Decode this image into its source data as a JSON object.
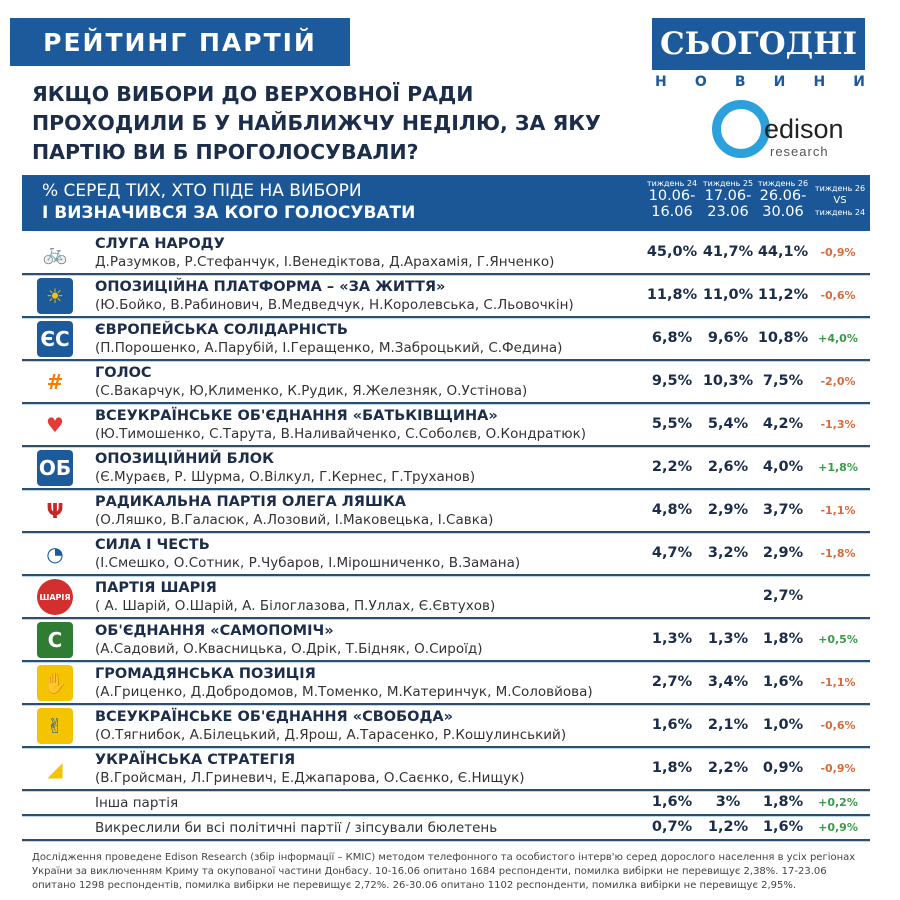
{
  "banner": "РЕЙТИНГ ПАРТІЙ",
  "question": "ЯКЩО ВИБОРИ ДО ВЕРХОВНОЇ РАДИ ПРОХОДИЛИ Б У НАЙБЛИЖЧУ НЕДІЛЮ, ЗА ЯКУ ПАРТІЮ ВИ Б ПРОГОЛОСУВАЛИ?",
  "logos": {
    "segodnya": "СЬОГОДНІ",
    "segodnya_sub": "НОВИНИ",
    "edison": "edison",
    "edison_sub": "research"
  },
  "colors": {
    "brand": "#1b5796",
    "negative": "#d9693a",
    "positive": "#3a9a4a",
    "text": "#1c2d4a"
  },
  "header": {
    "line1": "% СЕРЕД ТИХ, ХТО ПІДЕ НА ВИБОРИ",
    "line2": "І ВИЗНАЧИВСЯ ЗА КОГО ГОЛОСУВАТИ",
    "columns": [
      {
        "week": "тиждень 24",
        "from": "10.06-",
        "to": "16.06"
      },
      {
        "week": "тиждень 25",
        "from": "17.06-",
        "to": "23.06"
      },
      {
        "week": "тиждень 26",
        "from": "26.06-",
        "to": "30.06"
      }
    ],
    "vs_top": "тиждень 26",
    "vs": "VS",
    "vs_bottom": "тиждень 24"
  },
  "chart_data": {
    "type": "table",
    "columns": [
      "10.06-16.06",
      "17.06-23.06",
      "26.06-30.06",
      "тиждень 26 vs тиждень 24"
    ],
    "rows": [
      {
        "party": "СЛУГА НАРОДУ",
        "members": "Д.Разумков, Р.Стефанчук, І.Венедіктова, Д.Арахамія, Г.Янченко)",
        "icon": "cyclist-icon",
        "values": [
          "45,0%",
          "41,7%",
          "44,1%"
        ],
        "diff": "-0,9%"
      },
      {
        "party": "ОПОЗИЦІЙНА ПЛАТФОРМА – «ЗА ЖИТТЯ»",
        "members": "(Ю.Бойко, В.Рабинович, В.Медведчук, Н.Королевська, С.Льовочкін)",
        "icon": "sun-circle-icon",
        "values": [
          "11,8%",
          "11,0%",
          "11,2%"
        ],
        "diff": "-0,6%"
      },
      {
        "party": "ЄВРОПЕЙСЬКА СОЛІДАРНІСТЬ",
        "members": "(П.Порошенко, А.Парубій, І.Геращенко, М.Заброцький, С.Федина)",
        "icon": "es-logo-icon",
        "values": [
          "6,8%",
          "9,6%",
          "10,8%"
        ],
        "diff": "+4,0%"
      },
      {
        "party": "ГОЛОС",
        "members": "(С.Вакарчук, Ю,Клименко, К.Рудик, Я.Железняк, О.Устінова)",
        "icon": "holos-logo-icon",
        "values": [
          "9,5%",
          "10,3%",
          "7,5%"
        ],
        "diff": "-2,0%"
      },
      {
        "party": "ВСЕУКРАЇНСЬКЕ ОБ'ЄДНАННЯ «БАТЬКІВЩИНА»",
        "members": "(Ю.Тимошенко, С.Тарута, В.Наливайченко, С.Соболєв, О.Кондратюк)",
        "icon": "heart-icon",
        "values": [
          "5,5%",
          "5,4%",
          "4,2%"
        ],
        "diff": "-1,3%"
      },
      {
        "party": "ОПОЗИЦІЙНИЙ БЛОК",
        "members": "(Є.Мураєв, Р. Шурма, О.Вілкул, Г.Кернес, Г.Труханов)",
        "icon": "opblock-logo-icon",
        "values": [
          "2,2%",
          "2,6%",
          "4,0%"
        ],
        "diff": "+1,8%"
      },
      {
        "party": "РАДИКАЛЬНА ПАРТІЯ ОЛЕГА ЛЯШКА",
        "members": "(О.Ляшко, В.Галасюк, А.Лозовий, І.Маковецька, І.Савка)",
        "icon": "pitchfork-icon",
        "values": [
          "4,8%",
          "2,9%",
          "3,7%"
        ],
        "diff": "-1,1%"
      },
      {
        "party": "СИЛА І ЧЕСТЬ",
        "members": "(І.Смешко, О.Сотник, Р.Чубаров, І.Мірошниченко, В.Замана)",
        "icon": "sila-logo-icon",
        "values": [
          "4,7%",
          "3,2%",
          "2,9%"
        ],
        "diff": "-1,8%"
      },
      {
        "party": "ПАРТІЯ ШАРІЯ",
        "members": "( А. Шарій, О.Шарій, А. Білоглазова, П.Уллах, Є.Євтухов)",
        "icon": "sharij-logo-icon",
        "values": [
          "",
          "",
          "2,7%"
        ],
        "diff": ""
      },
      {
        "party": "ОБ'ЄДНАННЯ «САМОПОМІЧ»",
        "members": "(А.Садовий, О.Квасницька, О.Дрік, Т.Бідняк, О.Сироїд)",
        "icon": "samopomich-logo-icon",
        "values": [
          "1,3%",
          "1,3%",
          "1,8%"
        ],
        "diff": "+0,5%"
      },
      {
        "party": "ГРОМАДЯНСЬКА ПОЗИЦІЯ",
        "members": "(А.Гриценко, Д.Добродомов, М.Томенко, М.Катеринчук, М.Соловйова)",
        "icon": "hand-icon",
        "values": [
          "2,7%",
          "3,4%",
          "1,6%"
        ],
        "diff": "-1,1%"
      },
      {
        "party": "ВСЕУКРАЇНСЬКЕ ОБ'ЄДНАННЯ «СВОБОДА»",
        "members": "(О.Тягнибок, А.Білецький, Д.Ярош, А.Тарасенко, Р.Кошулинський)",
        "icon": "three-fingers-icon",
        "values": [
          "1,6%",
          "2,1%",
          "1,0%"
        ],
        "diff": "-0,6%"
      },
      {
        "party": "УКРАЇНСЬКА СТРАТЕГІЯ",
        "members": "(В.Гройсман, Л.Гриневич, Е.Джапарова, О.Саєнко, Є.Нищук)",
        "icon": "strategy-logo-icon",
        "values": [
          "1,8%",
          "2,2%",
          "0,9%"
        ],
        "diff": "-0,9%"
      },
      {
        "party": "Інша партія",
        "members": "",
        "icon": "",
        "values": [
          "1,6%",
          "3%",
          "1,8%"
        ],
        "diff": "+0,2%"
      },
      {
        "party": "Викреслили би всі політичні партії / зіпсували бюлетень",
        "members": "",
        "icon": "",
        "values": [
          "0,7%",
          "1,2%",
          "1,6%"
        ],
        "diff": "+0,9%"
      }
    ]
  },
  "footnote": "Дослідження проведене Edison Research (збір інформації – КМІС) методом телефонного та особистого інтерв'ю серед дорослого населення в усіх регіонах України за виключенням Криму та окупованої частини Донбасу. 10-16.06 опитано 1684 респонденти, помилка вибірки не перевищує 2,38%. 17-23.06 опитано 1298 респондентів, помилка вибірки не перевищує 2,72%. 26-30.06 опитано 1102 респонденти, помилка вибірки не перевищує 2,95%."
}
